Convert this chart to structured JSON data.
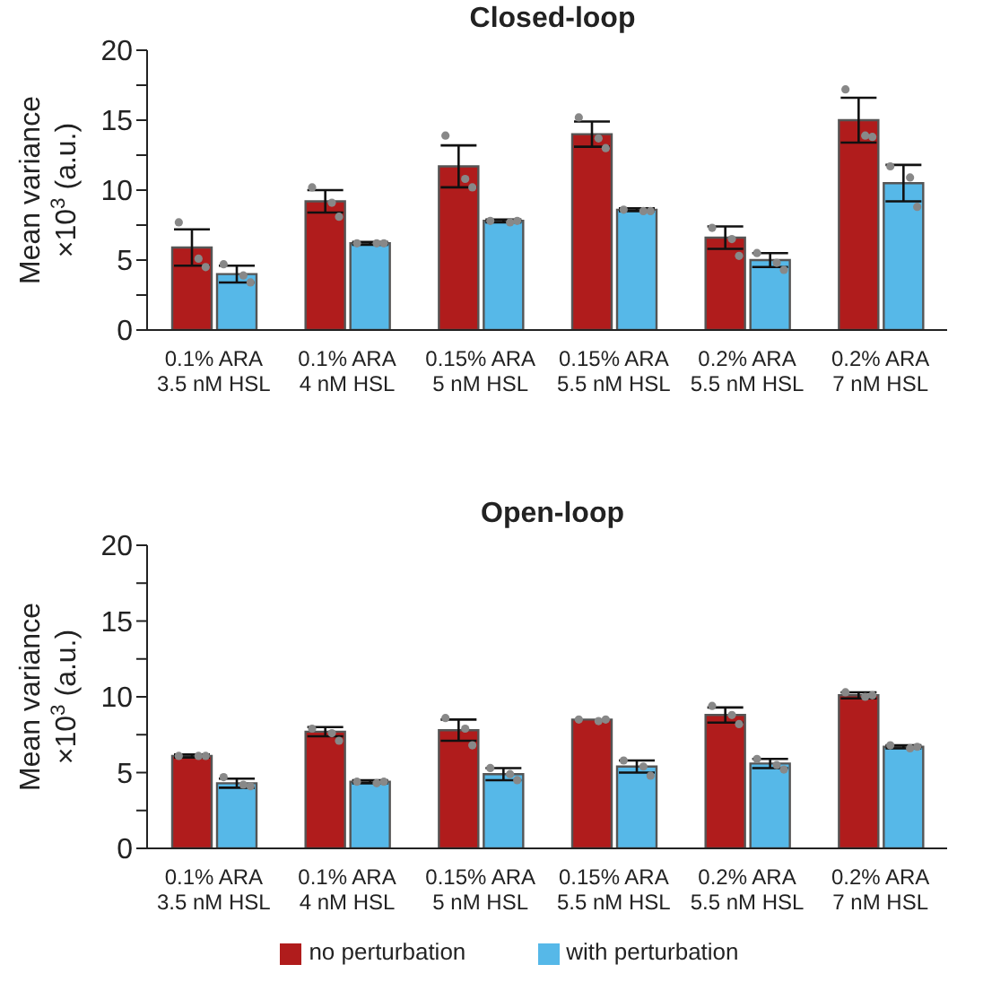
{
  "chart_data": [
    {
      "type": "bar",
      "title": "Closed-loop",
      "ylabel": "Mean variance\n×10$^{3}$ (a.u.)",
      "categories": [
        "0.1% ARA\n3.5 nM HSL",
        "0.1% ARA\n4 nM HSL",
        "0.15% ARA\n5 nM HSL",
        "0.15% ARA\n5.5 nM HSL",
        "0.2% ARA\n5.5 nM HSL",
        "0.2% ARA\n7 nM HSL"
      ],
      "ylim": [
        0,
        20
      ],
      "yticks": [
        0,
        {
          "value": 2.5,
          "label": null
        },
        5,
        {
          "value": 7.5,
          "label": null
        },
        10,
        {
          "value": 12.5,
          "label": null
        },
        15,
        {
          "value": 17.5,
          "label": null
        },
        20
      ],
      "legend": false,
      "series": [
        {
          "color": "#b01c1c",
          "values": [
            5.9,
            9.2,
            11.7,
            14.0,
            6.6,
            15.0
          ],
          "errors": [
            1.3,
            0.8,
            1.5,
            0.9,
            0.8,
            1.6
          ]
        },
        {
          "color": "#56b8e8",
          "values": [
            4.0,
            6.2,
            7.8,
            8.6,
            5.0,
            10.5
          ],
          "errors": [
            0.6,
            0.1,
            0.1,
            0.1,
            0.5,
            1.3
          ]
        },
        {
          "type": "scatter",
          "color": "#888888",
          "x": [
            "0.1% ARA\n3.5 nM HSL",
            "0.1% ARA\n3.5 nM HSL",
            "0.1% ARA\n3.5 nM HSL",
            "0.1% ARA\n4 nM HSL",
            "0.1% ARA\n4 nM HSL",
            "0.1% ARA\n4 nM HSL",
            "0.15% ARA\n5 nM HSL",
            "0.15% ARA\n5 nM HSL",
            "0.15% ARA\n5 nM HSL",
            "0.15% ARA\n5.5 nM HSL",
            "0.15% ARA\n5.5 nM HSL",
            "0.15% ARA\n5.5 nM HSL",
            "0.2% ARA\n5.5 nM HSL",
            "0.2% ARA\n5.5 nM HSL",
            "0.2% ARA\n5.5 nM HSL",
            "0.2% ARA\n7 nM HSL",
            "0.2% ARA\n7 nM HSL",
            "0.2% ARA\n7 nM HSL"
          ],
          "values": [
            7.7,
            5.1,
            4.5,
            10.2,
            9.1,
            8.1,
            13.9,
            10.8,
            10.2,
            15.2,
            13.7,
            13.0,
            7.3,
            6.5,
            5.3,
            17.2,
            13.9,
            13.8
          ]
        },
        {
          "type": "scatter",
          "color": "#888888",
          "x": [
            "0.1% ARA\n3.5 nM HSL",
            "0.1% ARA\n3.5 nM HSL",
            "0.1% ARA\n3.5 nM HSL",
            "0.1% ARA\n4 nM HSL",
            "0.1% ARA\n4 nM HSL",
            "0.1% ARA\n4 nM HSL",
            "0.15% ARA\n5 nM HSL",
            "0.15% ARA\n5 nM HSL",
            "0.15% ARA\n5 nM HSL",
            "0.15% ARA\n5.5 nM HSL",
            "0.15% ARA\n5.5 nM HSL",
            "0.15% ARA\n5.5 nM HSL",
            "0.2% ARA\n5.5 nM HSL",
            "0.2% ARA\n5.5 nM HSL",
            "0.2% ARA\n5.5 nM HSL",
            "0.2% ARA\n7 nM HSL",
            "0.2% ARA\n7 nM HSL",
            "0.2% ARA\n7 nM HSL"
          ],
          "values": [
            4.7,
            3.9,
            3.4,
            6.2,
            6.2,
            6.2,
            7.8,
            7.7,
            7.8,
            8.6,
            8.5,
            8.5,
            5.5,
            4.8,
            4.3,
            11.7,
            10.9,
            8.8
          ]
        }
      ]
    },
    {
      "type": "bar",
      "title": "Open-loop",
      "ylabel": "Mean variance\n×10$^{3}$ (a.u.)",
      "categories": [
        "0.1% ARA\n3.5 nM HSL",
        "0.1% ARA\n4 nM HSL",
        "0.15% ARA\n5 nM HSL",
        "0.15% ARA\n5.5 nM HSL",
        "0.2% ARA\n5.5 nM HSL",
        "0.2% ARA\n7 nM HSL"
      ],
      "ylim": [
        0,
        20
      ],
      "yticks": [
        0,
        {
          "value": 2.5,
          "label": null
        },
        5,
        {
          "value": 7.5,
          "label": null
        },
        10,
        {
          "value": 12.5,
          "label": null
        },
        15,
        {
          "value": 17.5,
          "label": null
        },
        20
      ],
      "legend": "bottom",
      "series": [
        {
          "name": "no perturbation",
          "color": "#b01c1c",
          "values": [
            6.1,
            7.7,
            7.8,
            8.5,
            8.8,
            10.1
          ],
          "errors": [
            0.1,
            0.3,
            0.7,
            null,
            0.5,
            0.2
          ]
        },
        {
          "name": "with perturbation",
          "color": "#56b8e8",
          "values": [
            4.3,
            4.4,
            4.9,
            5.4,
            5.6,
            6.7
          ],
          "errors": [
            0.3,
            0.1,
            0.4,
            0.4,
            0.3,
            0.1
          ]
        },
        {
          "type": "scatter",
          "color": "#888888",
          "x": [
            "0.1% ARA\n3.5 nM HSL",
            "0.1% ARA\n3.5 nM HSL",
            "0.1% ARA\n3.5 nM HSL",
            "0.1% ARA\n4 nM HSL",
            "0.1% ARA\n4 nM HSL",
            "0.1% ARA\n4 nM HSL",
            "0.15% ARA\n5 nM HSL",
            "0.15% ARA\n5 nM HSL",
            "0.15% ARA\n5 nM HSL",
            "0.15% ARA\n5.5 nM HSL",
            "0.15% ARA\n5.5 nM HSL",
            "0.15% ARA\n5.5 nM HSL",
            "0.2% ARA\n5.5 nM HSL",
            "0.2% ARA\n5.5 nM HSL",
            "0.2% ARA\n5.5 nM HSL",
            "0.2% ARA\n7 nM HSL",
            "0.2% ARA\n7 nM HSL",
            "0.2% ARA\n7 nM HSL"
          ],
          "values": [
            6.1,
            6.1,
            6.1,
            7.9,
            7.6,
            7.1,
            8.6,
            7.9,
            6.8,
            8.5,
            8.4,
            8.5,
            9.4,
            8.8,
            8.2,
            10.3,
            10.0,
            10.1
          ]
        },
        {
          "type": "scatter",
          "color": "#888888",
          "x": [
            "0.1% ARA\n3.5 nM HSL",
            "0.1% ARA\n3.5 nM HSL",
            "0.1% ARA\n3.5 nM HSL",
            "0.1% ARA\n4 nM HSL",
            "0.1% ARA\n4 nM HSL",
            "0.1% ARA\n4 nM HSL",
            "0.15% ARA\n5 nM HSL",
            "0.15% ARA\n5 nM HSL",
            "0.15% ARA\n5 nM HSL",
            "0.15% ARA\n5.5 nM HSL",
            "0.15% ARA\n5.5 nM HSL",
            "0.15% ARA\n5.5 nM HSL",
            "0.2% ARA\n5.5 nM HSL",
            "0.2% ARA\n5.5 nM HSL",
            "0.2% ARA\n5.5 nM HSL",
            "0.2% ARA\n7 nM HSL",
            "0.2% ARA\n7 nM HSL",
            "0.2% ARA\n7 nM HSL"
          ],
          "values": [
            4.7,
            4.2,
            4.1,
            4.4,
            4.3,
            4.4,
            5.3,
            4.9,
            4.5,
            5.8,
            5.4,
            4.8,
            5.9,
            5.5,
            5.2,
            6.8,
            6.6,
            6.7
          ]
        }
      ]
    }
  ]
}
